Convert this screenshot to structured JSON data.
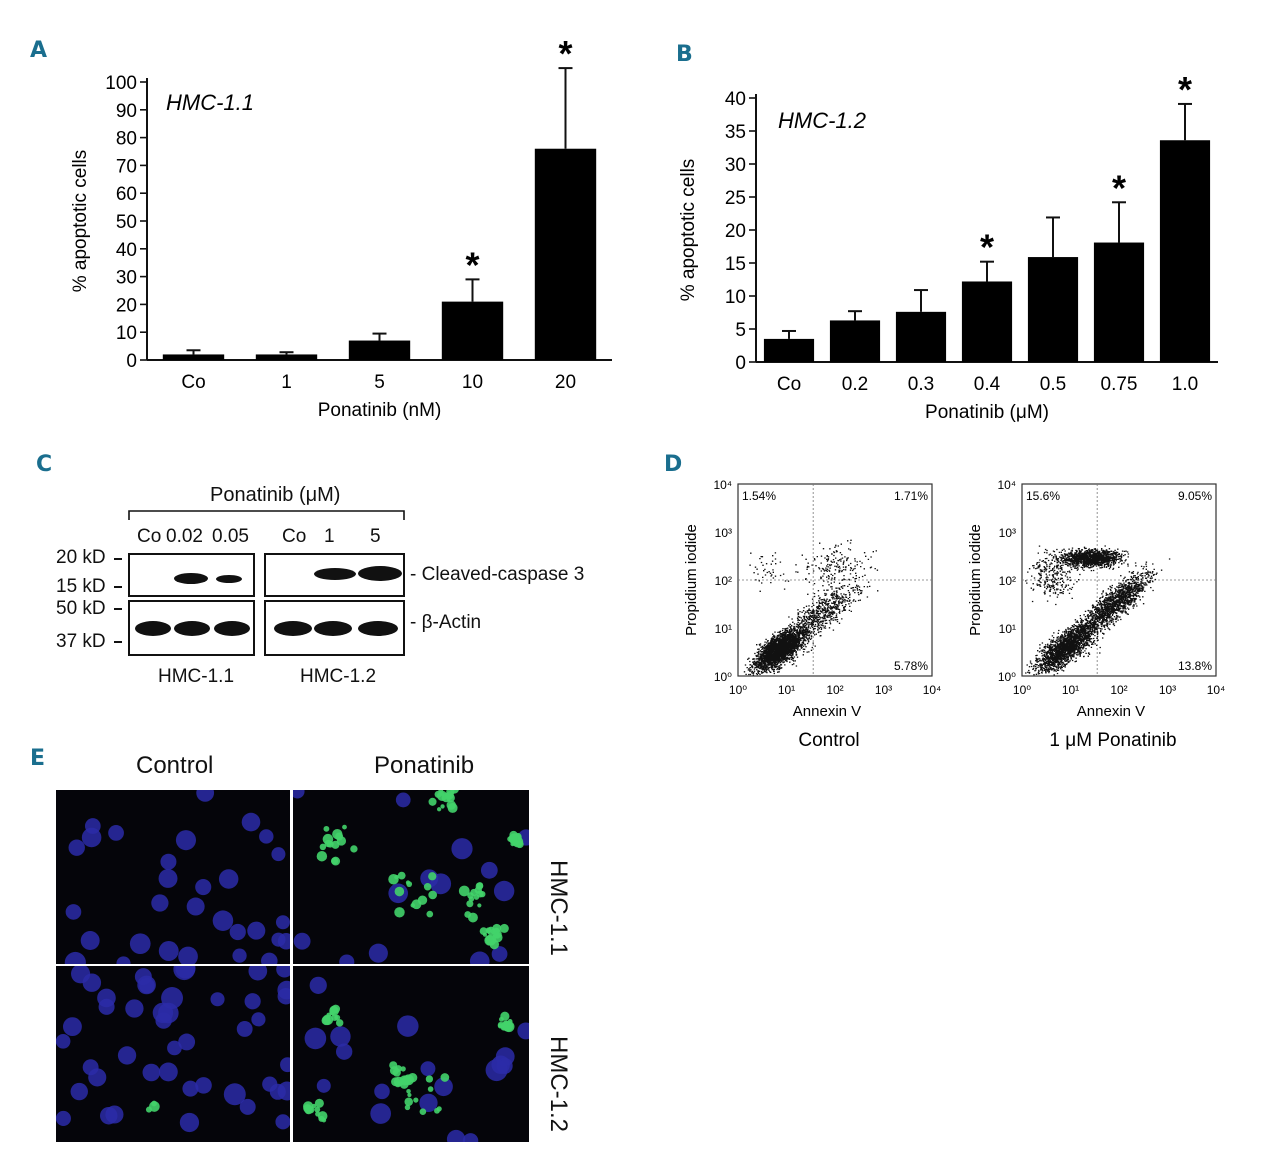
{
  "panel_labels": {
    "a": "A",
    "b": "B",
    "c": "C",
    "d": "D",
    "e": "E"
  },
  "chart_data": [
    {
      "id": "A",
      "type": "bar",
      "title": "HMC-1.1",
      "xlabel": "Ponatinib (nM)",
      "ylabel": "% apoptotic cells",
      "categories": [
        "Co",
        "1",
        "5",
        "10",
        "20"
      ],
      "values": [
        2,
        2,
        7,
        21,
        76
      ],
      "errors": [
        1.5,
        0.8,
        2.5,
        8,
        29
      ],
      "significant": [
        false,
        false,
        false,
        true,
        true
      ],
      "ylim": [
        0,
        100
      ],
      "yticks": [
        0,
        10,
        20,
        30,
        40,
        50,
        60,
        70,
        80,
        90,
        100
      ],
      "marker": "*"
    },
    {
      "id": "B",
      "type": "bar",
      "title": "HMC-1.2",
      "xlabel": "Ponatinib (μM)",
      "ylabel": "% apoptotic cells",
      "categories": [
        "Co",
        "0.2",
        "0.3",
        "0.4",
        "0.5",
        "0.75",
        "1.0"
      ],
      "values": [
        3.5,
        6.3,
        7.6,
        12.2,
        15.9,
        18.1,
        33.6
      ],
      "errors": [
        1.2,
        1.4,
        3.3,
        3.0,
        6.0,
        6.1,
        5.5
      ],
      "significant": [
        false,
        false,
        false,
        true,
        false,
        true,
        true
      ],
      "ylim": [
        0,
        40
      ],
      "yticks": [
        0,
        5,
        10,
        15,
        20,
        25,
        30,
        35,
        40
      ],
      "marker": "*"
    },
    {
      "id": "D",
      "type": "scatter",
      "xlabel": "Annexin V",
      "ylabel": "Propidium iodide",
      "axis_ticks": [
        "10⁰",
        "10¹",
        "10²",
        "10³",
        "10⁴"
      ],
      "plots": [
        {
          "name": "Control",
          "quadrants": {
            "upper_left": "1.54%",
            "upper_right": "1.71%",
            "lower_right": "5.78%"
          }
        },
        {
          "name": "1 μM Ponatinib",
          "quadrants": {
            "upper_left": "15.6%",
            "upper_right": "9.05%",
            "lower_right": "13.8%"
          }
        }
      ]
    }
  ],
  "western": {
    "header": "Ponatinib (μM)",
    "lanes_left": [
      "Co",
      "0.02",
      "0.05"
    ],
    "lanes_right": [
      "Co",
      "1",
      "5"
    ],
    "markers": [
      "20 kD",
      "15 kD",
      "50 kD",
      "37 kD"
    ],
    "protein_top": "Cleaved-caspase 3",
    "protein_bottom": "β-Actin",
    "cell_left": "HMC-1.1",
    "cell_right": "HMC-1.2"
  },
  "microscopy": {
    "col_control": "Control",
    "col_treated": "Ponatinib",
    "row_1": "HMC-1.1",
    "row_2": "HMC-1.2"
  },
  "colors": {
    "panel_label": "#1a6e8e",
    "bar": "#000000",
    "nucleus": "#2a2aa0",
    "apoptotic": "#3fd06a"
  }
}
